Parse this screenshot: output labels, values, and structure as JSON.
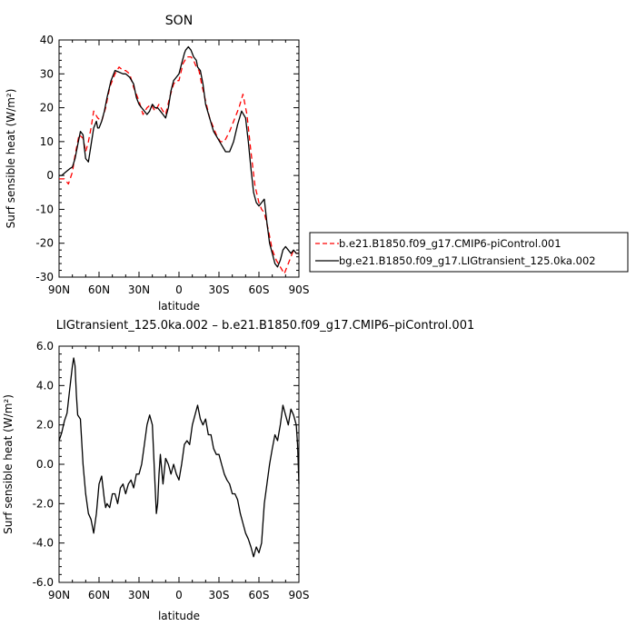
{
  "chart_data": [
    {
      "type": "line",
      "title": "SON",
      "xlabel": "latitude",
      "ylabel": "Surf sensible heat (W/m²)",
      "xlim": [
        90,
        -90
      ],
      "ylim": [
        -30,
        40
      ],
      "x_ticks": [
        "90N",
        "60N",
        "30N",
        "0",
        "30S",
        "60S",
        "90S"
      ],
      "y_ticks": [
        "-30",
        "-20",
        "-10",
        "0",
        "10",
        "20",
        "30",
        "40"
      ],
      "legend_position": "right",
      "series": [
        {
          "name": "b.e21.B1850.f09_g17.CMIP6-piControl.001",
          "color": "#ff0000",
          "dash": "dashed",
          "x": [
            90,
            86,
            83,
            80,
            78,
            75,
            72,
            70,
            68,
            66,
            64,
            61,
            58,
            55,
            52,
            48,
            45,
            42,
            40,
            37,
            34,
            30,
            27,
            24,
            21,
            18,
            15,
            12,
            10,
            7,
            4,
            2,
            0,
            -3,
            -6,
            -9,
            -11,
            -13,
            -15,
            -17,
            -20,
            -23,
            -26,
            -28,
            -31,
            -34,
            -38,
            -42,
            -45,
            -48,
            -51,
            -54,
            -57,
            -60,
            -62,
            -64,
            -67,
            -70,
            -73,
            -76,
            -79,
            -82,
            -84,
            -86,
            -88,
            -90
          ],
          "y": [
            -1,
            -1,
            -2.5,
            1,
            6,
            12,
            11,
            7,
            10,
            14,
            19,
            17,
            16,
            20,
            26,
            30,
            32,
            31,
            31,
            30,
            26,
            22,
            18,
            20,
            21,
            19,
            21,
            19,
            18,
            23,
            27,
            28,
            28,
            33,
            35,
            35,
            34,
            32,
            31,
            27,
            22,
            17,
            14,
            12,
            10,
            10,
            13,
            17,
            20,
            24,
            18,
            7,
            -3,
            -8,
            -10,
            -11,
            -16,
            -22,
            -25,
            -27,
            -29,
            -26,
            -24,
            -22,
            -23,
            -23
          ]
        },
        {
          "name": "bg.e21.B1850.f09_g17.LIGtransient_125.0ka.002",
          "color": "#000000",
          "dash": "solid",
          "x": [
            90,
            88,
            85,
            82,
            80,
            78,
            76,
            74,
            72,
            71,
            70,
            68,
            66,
            64,
            62,
            61,
            60,
            58,
            56,
            54,
            51,
            48,
            45,
            42,
            40,
            37,
            34,
            32,
            30,
            28,
            26,
            24,
            22,
            20,
            18,
            16,
            14,
            12,
            10,
            8,
            6,
            4,
            2,
            0,
            -2,
            -4,
            -5,
            -7,
            -9,
            -11,
            -13,
            -14,
            -16,
            -18,
            -20,
            -23,
            -26,
            -29,
            -32,
            -35,
            -38,
            -41,
            -44,
            -47,
            -50,
            -52,
            -54,
            -56,
            -58,
            -60,
            -62,
            -64,
            -66,
            -68,
            -70,
            -72,
            -74,
            -76,
            -78,
            -80,
            -82,
            -84,
            -86,
            -88,
            -90
          ],
          "y": [
            0,
            0,
            1,
            2,
            2.5,
            5,
            9,
            13,
            12,
            8,
            5,
            4,
            9,
            14,
            16,
            14,
            14,
            16,
            19,
            23,
            28,
            31,
            30.5,
            30,
            30,
            29,
            27,
            23,
            21,
            20,
            19,
            18,
            19,
            21,
            20,
            20,
            19,
            18,
            17,
            20,
            25,
            28,
            29,
            30,
            33,
            36,
            37,
            38,
            37,
            35,
            34,
            32,
            31,
            27,
            21,
            17,
            13,
            11,
            9,
            7,
            7,
            10,
            15,
            19,
            17,
            10,
            2,
            -5,
            -8,
            -9,
            -8,
            -7,
            -14,
            -20,
            -23,
            -26,
            -27,
            -25,
            -22,
            -21,
            -22,
            -23,
            -22,
            -23,
            -23
          ]
        }
      ]
    },
    {
      "type": "line",
      "title": "LIGtransient_125.0ka.002 – b.e21.B1850.f09_g17.CMIP6–piControl.001",
      "xlabel": "latitude",
      "ylabel": "Surf sensible heat (W/m²)",
      "xlim": [
        90,
        -90
      ],
      "ylim": [
        -6,
        6
      ],
      "x_ticks": [
        "90N",
        "60N",
        "30N",
        "0",
        "30S",
        "60S",
        "90S"
      ],
      "y_ticks": [
        "-6.0",
        "-4.0",
        "-2.0",
        "0.0",
        "2.0",
        "4.0",
        "6.0"
      ],
      "series": [
        {
          "name": "",
          "color": "#000000",
          "dash": "solid",
          "x": [
            90,
            88,
            86,
            84,
            82,
            80,
            79,
            78,
            77,
            76,
            74,
            72,
            70,
            68,
            66,
            64,
            62,
            60,
            58,
            56,
            55,
            54,
            52,
            50,
            48,
            46,
            44,
            42,
            40,
            38,
            36,
            34,
            32,
            30,
            28,
            26,
            24,
            22,
            20,
            18,
            17,
            16,
            15,
            14,
            12,
            10,
            8,
            6,
            4,
            2,
            0,
            -2,
            -4,
            -6,
            -8,
            -10,
            -12,
            -14,
            -16,
            -18,
            -20,
            -22,
            -24,
            -26,
            -28,
            -30,
            -32,
            -34,
            -36,
            -38,
            -40,
            -42,
            -44,
            -46,
            -48,
            -50,
            -52,
            -54,
            -56,
            -58,
            -60,
            -62,
            -64,
            -66,
            -68,
            -70,
            -72,
            -74,
            -76,
            -78,
            -80,
            -82,
            -84,
            -86,
            -88,
            -89,
            -90
          ],
          "y": [
            1.2,
            1.6,
            2.2,
            2.6,
            3.8,
            5.0,
            5.4,
            5.0,
            3.5,
            2.5,
            2.3,
            0.0,
            -1.5,
            -2.5,
            -2.8,
            -3.5,
            -2.5,
            -1.0,
            -0.6,
            -1.8,
            -2.2,
            -2.0,
            -2.2,
            -1.5,
            -1.5,
            -2.0,
            -1.2,
            -1.0,
            -1.5,
            -1.0,
            -0.8,
            -1.2,
            -0.5,
            -0.5,
            0.0,
            1.0,
            2.0,
            2.5,
            2.0,
            -1.0,
            -2.5,
            -2.0,
            -0.5,
            0.5,
            -1.0,
            0.3,
            0.0,
            -0.5,
            0.0,
            -0.5,
            -0.8,
            0.0,
            1.0,
            1.2,
            1.0,
            2.0,
            2.5,
            3.0,
            2.3,
            2.0,
            2.3,
            1.5,
            1.5,
            0.8,
            0.5,
            0.5,
            0.0,
            -0.5,
            -0.8,
            -1.0,
            -1.5,
            -1.5,
            -1.8,
            -2.5,
            -3.0,
            -3.5,
            -3.8,
            -4.2,
            -4.7,
            -4.2,
            -4.5,
            -4.0,
            -2.0,
            -1.0,
            0.0,
            0.8,
            1.5,
            1.2,
            2.0,
            3.0,
            2.5,
            2.0,
            2.8,
            2.5,
            2.0,
            1.0,
            -1.0
          ]
        }
      ]
    }
  ]
}
